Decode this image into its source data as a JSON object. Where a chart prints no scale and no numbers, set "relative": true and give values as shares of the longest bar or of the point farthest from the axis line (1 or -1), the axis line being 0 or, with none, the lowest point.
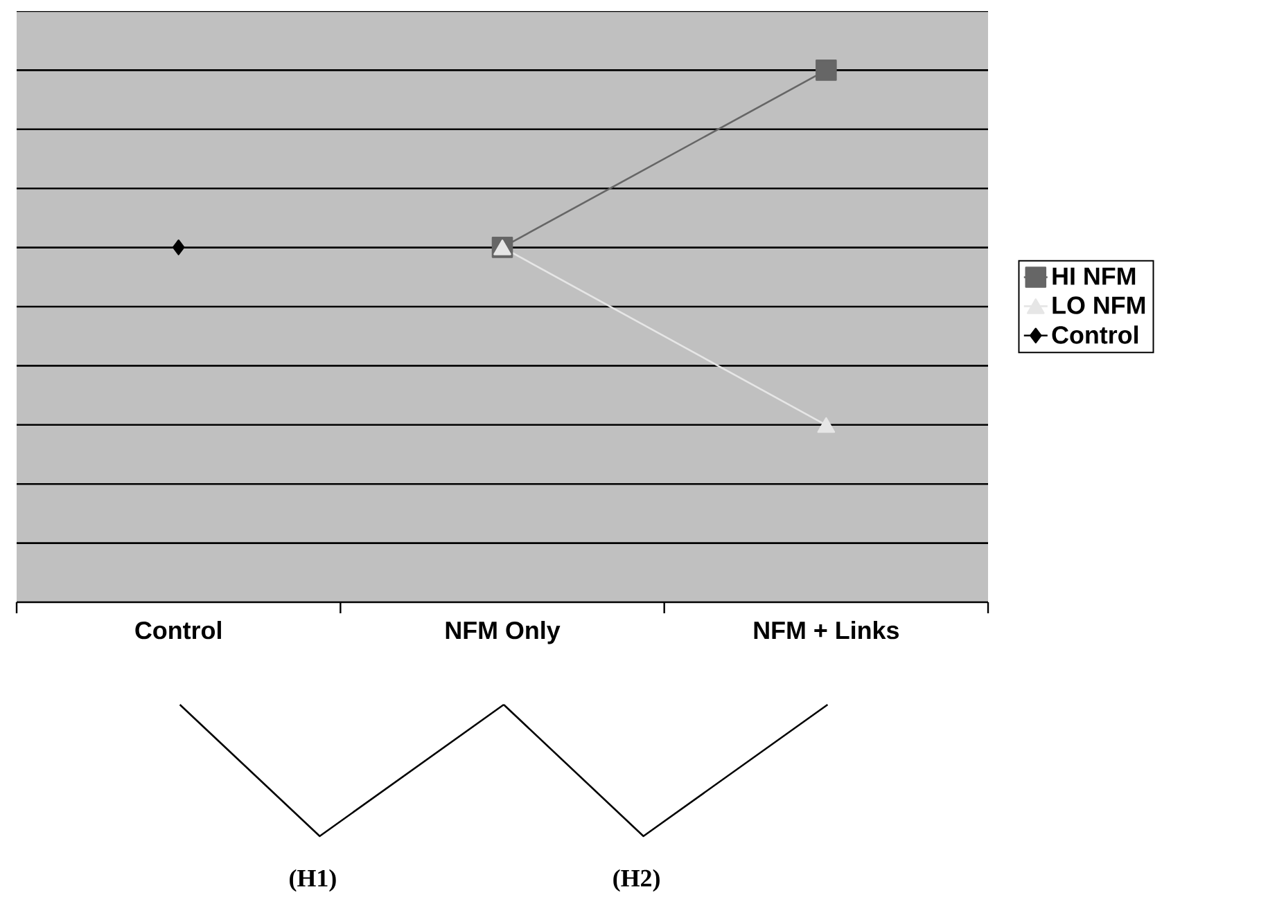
{
  "chart_data": {
    "type": "line",
    "relative": true,
    "categories": [
      "Control",
      "NFM Only",
      "NFM + Links"
    ],
    "series": [
      {
        "name": "HI NFM",
        "color": "#666666",
        "marker": "square",
        "values": [
          null,
          0.667,
          1
        ]
      },
      {
        "name": "LO NFM",
        "color": "#e6e6e6",
        "marker": "triangle",
        "values": [
          null,
          0.667,
          0.333
        ]
      },
      {
        "name": "Control",
        "color": "#000000",
        "marker": "diamond",
        "values": [
          0.667,
          null,
          null
        ]
      }
    ],
    "grid": "y",
    "legend": "right",
    "line_style": "solid",
    "annotations": [
      "(H1)",
      "(H2)"
    ]
  }
}
